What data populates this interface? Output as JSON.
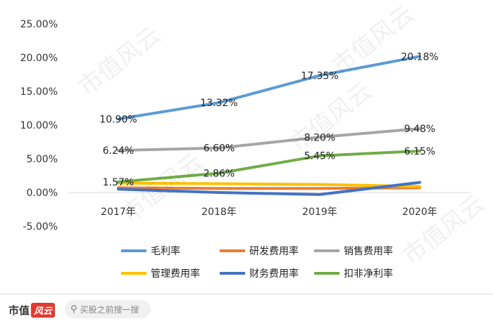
{
  "chart_data": {
    "type": "line",
    "categories": [
      "2017年",
      "2018年",
      "2019年",
      "2020年"
    ],
    "y_ticks": [
      "25.00%",
      "20.00%",
      "15.00%",
      "10.00%",
      "5.00%",
      "0.00%",
      "-5.00%"
    ],
    "ylim": [
      -5,
      25
    ],
    "series": [
      {
        "name": "毛利率",
        "color": "#5b9bd5",
        "values": [
          10.9,
          13.32,
          17.35,
          20.18
        ],
        "labels": [
          "10.90%",
          "13.32%",
          "17.35%",
          "20.18%"
        ]
      },
      {
        "name": "研发费用率",
        "color": "#ed7d31",
        "values": [
          0.7,
          0.6,
          0.6,
          0.7
        ],
        "labels": []
      },
      {
        "name": "销售费用率",
        "color": "#a5a5a5",
        "values": [
          6.24,
          6.6,
          8.2,
          9.48
        ],
        "labels": [
          "6.24%",
          "6.60%",
          "8.20%",
          "9.48%"
        ]
      },
      {
        "name": "管理费用率",
        "color": "#ffc000",
        "values": [
          1.4,
          1.3,
          1.2,
          0.9
        ],
        "labels": []
      },
      {
        "name": "财务费用率",
        "color": "#4472c4",
        "values": [
          0.5,
          0.0,
          -0.3,
          1.5
        ],
        "labels": []
      },
      {
        "name": "扣非净利率",
        "color": "#70ad47",
        "values": [
          1.57,
          2.86,
          5.45,
          6.15
        ],
        "labels": [
          "1.57%",
          "2.86%",
          "5.45%",
          "6.15%"
        ]
      }
    ]
  },
  "watermark_text": "市值风云",
  "footer": {
    "brand": "市值",
    "brand_mark": "风云",
    "search_placeholder": "买股之前搜一搜"
  }
}
